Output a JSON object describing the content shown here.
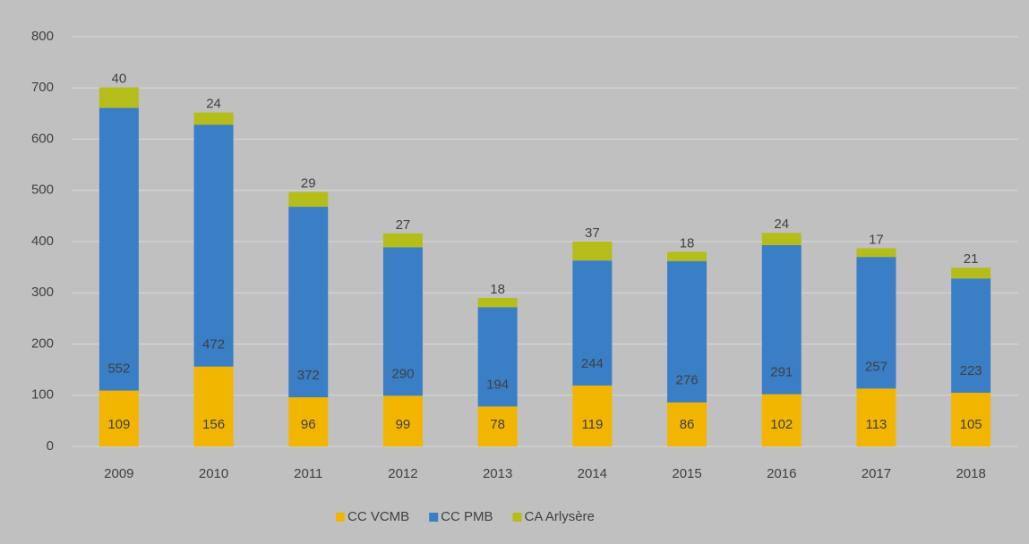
{
  "chart_data": {
    "type": "stacked_bar",
    "categories": [
      "2009",
      "2010",
      "2011",
      "2012",
      "2013",
      "2014",
      "2015",
      "2016",
      "2017",
      "2018"
    ],
    "series": [
      {
        "name": "CC VCMB",
        "color": "#f2b600",
        "values": [
          109,
          156,
          96,
          99,
          78,
          119,
          86,
          102,
          113,
          105
        ]
      },
      {
        "name": "CC PMB",
        "color": "#3a7ec6",
        "values": [
          552,
          472,
          372,
          290,
          194,
          244,
          276,
          291,
          257,
          223
        ]
      },
      {
        "name": "CA Arlysère",
        "color": "#b5bd1a",
        "values": [
          40,
          24,
          29,
          27,
          18,
          37,
          18,
          24,
          17,
          21
        ]
      }
    ],
    "ylim": [
      0,
      800
    ],
    "yticks": [
      0,
      100,
      200,
      300,
      400,
      500,
      600,
      700,
      800
    ],
    "grid": true,
    "legend": "bottom"
  }
}
